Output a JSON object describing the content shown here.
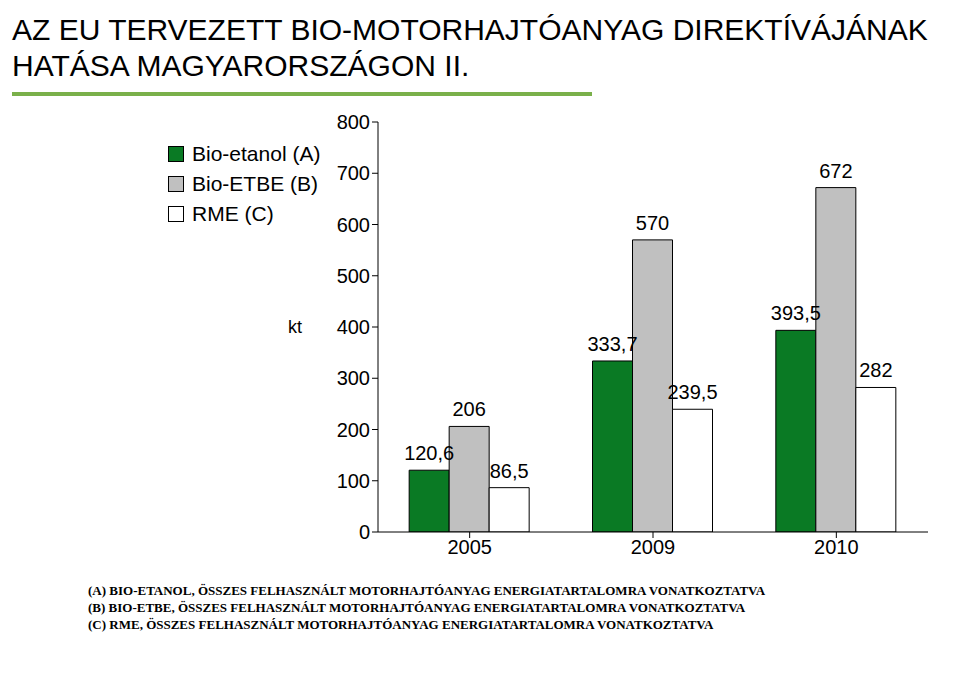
{
  "chart_data": {
    "type": "bar",
    "title": "AZ EU TERVEZETT BIO-MOTORHAJTÓANYAG DIREKTÍVÁJÁNAK HATÁSA MAGYARORSZÁGON II.",
    "y_label": "kt",
    "categories": [
      "2005",
      "2009",
      "2010"
    ],
    "series": [
      {
        "name": "Bio-etanol (A)",
        "color": "#0a7a24",
        "values": [
          120.6,
          333.7,
          393.5
        ],
        "value_labels": [
          "120,6",
          "333,7",
          "393,5"
        ]
      },
      {
        "name": "Bio-ETBE (B)",
        "color": "#c0c0c0",
        "values": [
          206,
          570,
          672
        ],
        "value_labels": [
          "206",
          "570",
          "672"
        ]
      },
      {
        "name": "RME (C)",
        "color": "#ffffff",
        "values": [
          86.5,
          239.5,
          282
        ],
        "value_labels": [
          "86,5",
          "239,5",
          "282"
        ]
      }
    ],
    "ylim": [
      0,
      800
    ],
    "yticks": [
      0,
      100,
      200,
      300,
      400,
      500,
      600,
      700,
      800
    ],
    "grid": false,
    "legend": "upper left",
    "data_labels": true,
    "annotations": [
      "(A) BIO-ETANOL, ÖSSZES FELHASZNÁLT MOTORHAJTÓANYAG ENERGIATARTALOMRA VONATKOZTATVA",
      "(B) BIO-ETBE, ÖSSZES FELHASZNÁLT MOTORHAJTÓANYAG ENERGIATARTALOMRA VONATKOZTATVA",
      "(C) RME, ÖSSZES FELHASZNÁLT MOTORHAJTÓANYAG ENERGIATARTALOMRA VONATKOZTATVA"
    ]
  }
}
